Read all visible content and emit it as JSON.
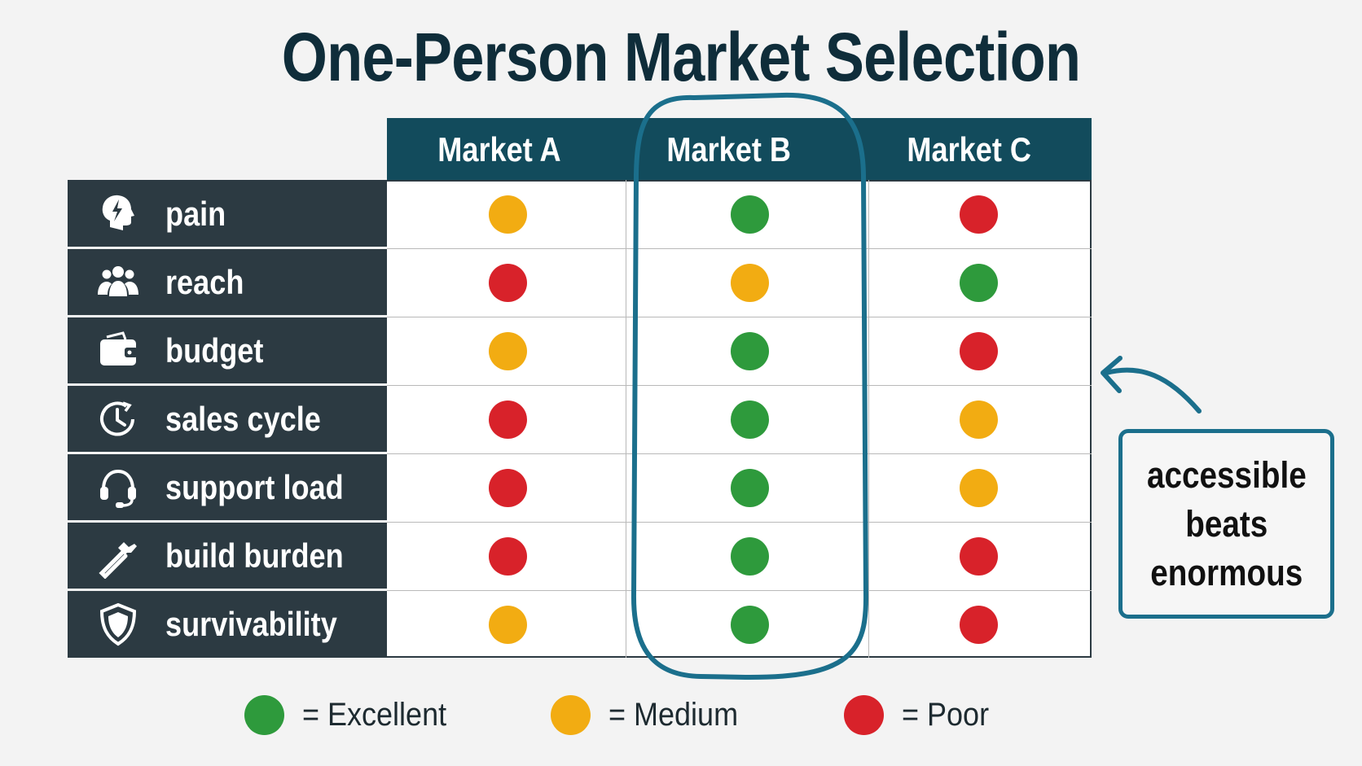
{
  "title": "One-Person Market Selection",
  "columns": [
    "Market A",
    "Market B",
    "Market C"
  ],
  "highlighted_column": "Market B",
  "rows": [
    {
      "label": "pain",
      "icon": "head-lightning-icon",
      "ratings": [
        "medium",
        "excellent",
        "poor"
      ]
    },
    {
      "label": "reach",
      "icon": "people-group-icon",
      "ratings": [
        "poor",
        "medium",
        "excellent"
      ]
    },
    {
      "label": "budget",
      "icon": "wallet-icon",
      "ratings": [
        "medium",
        "excellent",
        "poor"
      ]
    },
    {
      "label": "sales cycle",
      "icon": "clock-cycle-icon",
      "ratings": [
        "poor",
        "excellent",
        "medium"
      ]
    },
    {
      "label": "support load",
      "icon": "headset-icon",
      "ratings": [
        "poor",
        "excellent",
        "medium"
      ]
    },
    {
      "label": "build burden",
      "icon": "hammer-icon",
      "ratings": [
        "poor",
        "excellent",
        "poor"
      ]
    },
    {
      "label": "survivability",
      "icon": "shield-icon",
      "ratings": [
        "medium",
        "excellent",
        "poor"
      ]
    }
  ],
  "callout": {
    "lines": [
      "accessible",
      "beats",
      "enormous"
    ]
  },
  "legend": [
    {
      "key": "excellent",
      "label": "= Excellent"
    },
    {
      "key": "medium",
      "label": "= Medium"
    },
    {
      "key": "poor",
      "label": "= Poor"
    }
  ],
  "colors": {
    "excellent": "#2e9a3c",
    "medium": "#f2ac12",
    "poor": "#d8222a",
    "header": "#124b5c",
    "label_bg": "#2c3a42",
    "highlight": "#1b6f8c"
  }
}
